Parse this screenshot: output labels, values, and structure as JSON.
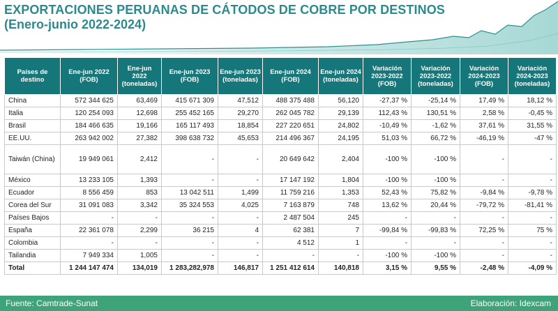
{
  "title": "EXPORTACIONES PERUANAS DE CÁTODOS DE COBRE POR DESTINOS",
  "subtitle": "(Enero-junio 2022-2024)",
  "headers": [
    "Países de destino",
    "Ene-jun 2022 (FOB)",
    "Ene-jun 2022 (toneladas)",
    "Ene-jun 2023 (FOB)",
    "Ene-jun 2023 (toneladas)",
    "Ene-jun 2024 (FOB)",
    "Ene-jun 2024 (toneladas)",
    "Variación 2023-2022 (FOB)",
    "Variación 2023-2022 (toneladas)",
    "Variación 2024-2023 (FOB)",
    "Variación 2024-2023 (toneladas)"
  ],
  "rows": [
    [
      "China",
      "572 344 625",
      "63,469",
      "415 671 309",
      "47,512",
      "488 375 488",
      "56,120",
      "-27,37 %",
      "-25,14 %",
      "17,49 %",
      "18,12 %"
    ],
    [
      "Italia",
      "120 254 093",
      "12,698",
      "255 452 165",
      "29,270",
      "262 045 782",
      "29,139",
      "112,43 %",
      "130,51 %",
      "2,58 %",
      "-0,45 %"
    ],
    [
      "Brasil",
      "184 466 635",
      "19,166",
      "165 117 493",
      "18,854",
      "227 220 651",
      "24,802",
      "-10,49 %",
      "-1,62 %",
      "37,61 %",
      "31,55 %"
    ],
    [
      "EE.UU.",
      "263 942 002",
      "27,382",
      "398 638 732",
      "45,653",
      "214 496 367",
      "24,195",
      "51,03 %",
      "66,72 %",
      "-46,19 %",
      "-47 %"
    ],
    [
      "Taiwán (China)",
      "19 949 061",
      "2,412",
      "-",
      "-",
      "20 649 642",
      "2,404",
      "-100 %",
      "-100 %",
      "-",
      "-"
    ],
    [
      "México",
      "13 233 105",
      "1,393",
      "-",
      "-",
      "17 147 192",
      "1,804",
      "-100 %",
      "-100 %",
      "-",
      "-"
    ],
    [
      "Ecuador",
      "8 556 459",
      "853",
      "13 042 511",
      "1,499",
      "11 759 216",
      "1,353",
      "52,43 %",
      "75,82 %",
      "-9,84 %",
      "-9,78 %"
    ],
    [
      "Corea del Sur",
      "31 091 083",
      "3,342",
      "35 324 553",
      "4,025",
      "7 163 879",
      "748",
      "13,62 %",
      "20,44 %",
      "-79,72 %",
      "-81,41 %"
    ],
    [
      "Países Bajos",
      "-",
      "-",
      "-",
      "-",
      "2 487 504",
      "245",
      "-",
      "-",
      "-",
      "-"
    ],
    [
      "España",
      "22 361 078",
      "2,299",
      "36 215",
      "4",
      "62 381",
      "7",
      "-99,84 %",
      "-99,83 %",
      "72,25 %",
      "75 %"
    ],
    [
      "Colombia",
      "-",
      "-",
      "-",
      "-",
      "4 512",
      "1",
      "-",
      "-",
      "-",
      "-"
    ],
    [
      "Tailandia",
      "7 949 334",
      "1,005",
      "-",
      "-",
      "-",
      "-",
      "-100 %",
      "-100 %",
      "-",
      "-"
    ],
    [
      "Total",
      "1 244 147 474",
      "134,019",
      "1 283,282,978",
      "146,817",
      "1 251 412 614",
      "140,818",
      "3,15 %",
      "9,55 %",
      "-2,48 %",
      "-4,09 %"
    ]
  ],
  "footer": {
    "source": "Fuente: Camtrade-Sunat",
    "credit": "Elaboración: Idexcam"
  },
  "colors": {
    "title": "#2a8a8c",
    "header_bg": "#16777a",
    "footer_bg": "#3fa37a"
  }
}
